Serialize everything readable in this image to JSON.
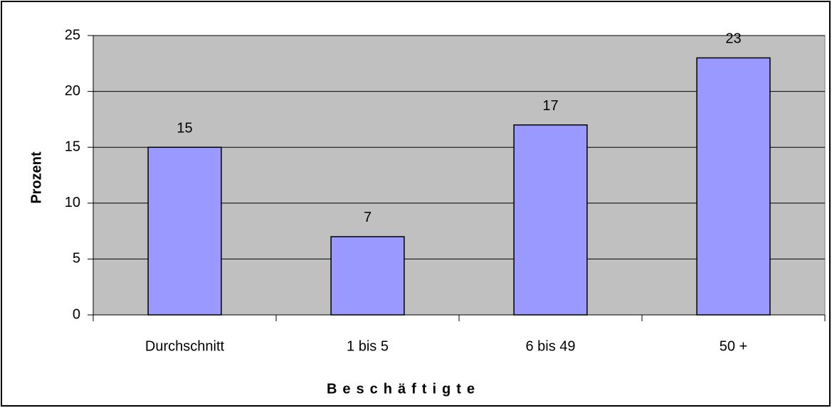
{
  "chart_data": {
    "type": "bar",
    "xlabel": "Beschäftigte",
    "ylabel": "Prozent",
    "categories": [
      "Durchschnitt",
      "1 bis 5",
      "6 bis 49",
      "50 +"
    ],
    "values": [
      15,
      7,
      17,
      23
    ],
    "color": "#9999ff",
    "ylim": [
      0,
      25
    ],
    "yticks": [
      0,
      5,
      10,
      15,
      20,
      25
    ],
    "grid": true
  }
}
